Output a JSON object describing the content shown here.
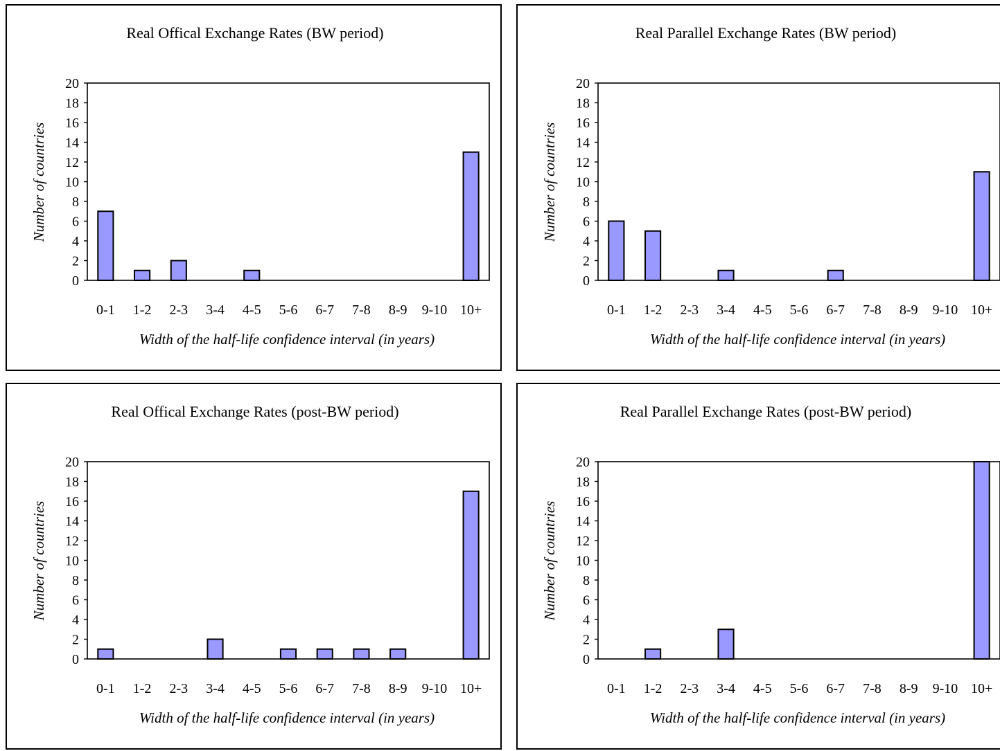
{
  "chart_data": [
    {
      "type": "bar",
      "title": "Real Offical Exchange Rates (BW period)",
      "xlabel": "Width of the half-life confidence interval (in years)",
      "ylabel": "Number of countries",
      "categories": [
        "0-1",
        "1-2",
        "2-3",
        "3-4",
        "4-5",
        "5-6",
        "6-7",
        "7-8",
        "8-9",
        "9-10",
        "10+"
      ],
      "values": [
        7,
        1,
        2,
        0,
        1,
        0,
        0,
        0,
        0,
        0,
        13
      ],
      "yticks": [
        "0",
        "2",
        "4",
        "6",
        "8",
        "10",
        "12",
        "14",
        "16",
        "18",
        "20"
      ],
      "ylim": [
        0,
        20
      ],
      "grid": false,
      "bar_color": "#9999ff"
    },
    {
      "type": "bar",
      "title": "Real Parallel Exchange Rates (BW period)",
      "xlabel": "Width of the half-life confidence interval (in years)",
      "ylabel": "Number of countries",
      "categories": [
        "0-1",
        "1-2",
        "2-3",
        "3-4",
        "4-5",
        "5-6",
        "6-7",
        "7-8",
        "8-9",
        "9-10",
        "10+"
      ],
      "values": [
        6,
        5,
        0,
        1,
        0,
        0,
        1,
        0,
        0,
        0,
        11
      ],
      "yticks": [
        "0",
        "2",
        "4",
        "6",
        "8",
        "10",
        "12",
        "14",
        "16",
        "18",
        "20"
      ],
      "ylim": [
        0,
        20
      ],
      "grid": false,
      "bar_color": "#9999ff"
    },
    {
      "type": "bar",
      "title": "Real Offical Exchange Rates (post-BW period)",
      "xlabel": "Width of the half-life confidence interval (in years)",
      "ylabel": "Number of countries",
      "categories": [
        "0-1",
        "1-2",
        "2-3",
        "3-4",
        "4-5",
        "5-6",
        "6-7",
        "7-8",
        "8-9",
        "9-10",
        "10+"
      ],
      "values": [
        1,
        0,
        0,
        2,
        0,
        1,
        1,
        1,
        1,
        0,
        17
      ],
      "yticks": [
        "0",
        "2",
        "4",
        "6",
        "8",
        "10",
        "12",
        "14",
        "16",
        "18",
        "20"
      ],
      "ylim": [
        0,
        20
      ],
      "grid": false,
      "bar_color": "#9999ff"
    },
    {
      "type": "bar",
      "title": "Real Parallel Exchange Rates (post-BW period)",
      "xlabel": "Width of the half-life confidence interval (in years)",
      "ylabel": "Number of countries",
      "categories": [
        "0-1",
        "1-2",
        "2-3",
        "3-4",
        "4-5",
        "5-6",
        "6-7",
        "7-8",
        "8-9",
        "9-10",
        "10+"
      ],
      "values": [
        0,
        1,
        0,
        3,
        0,
        0,
        0,
        0,
        0,
        0,
        20
      ],
      "yticks": [
        "0",
        "2",
        "4",
        "6",
        "8",
        "10",
        "12",
        "14",
        "16",
        "18",
        "20"
      ],
      "ylim": [
        0,
        20
      ],
      "grid": false,
      "bar_color": "#9999ff"
    }
  ]
}
